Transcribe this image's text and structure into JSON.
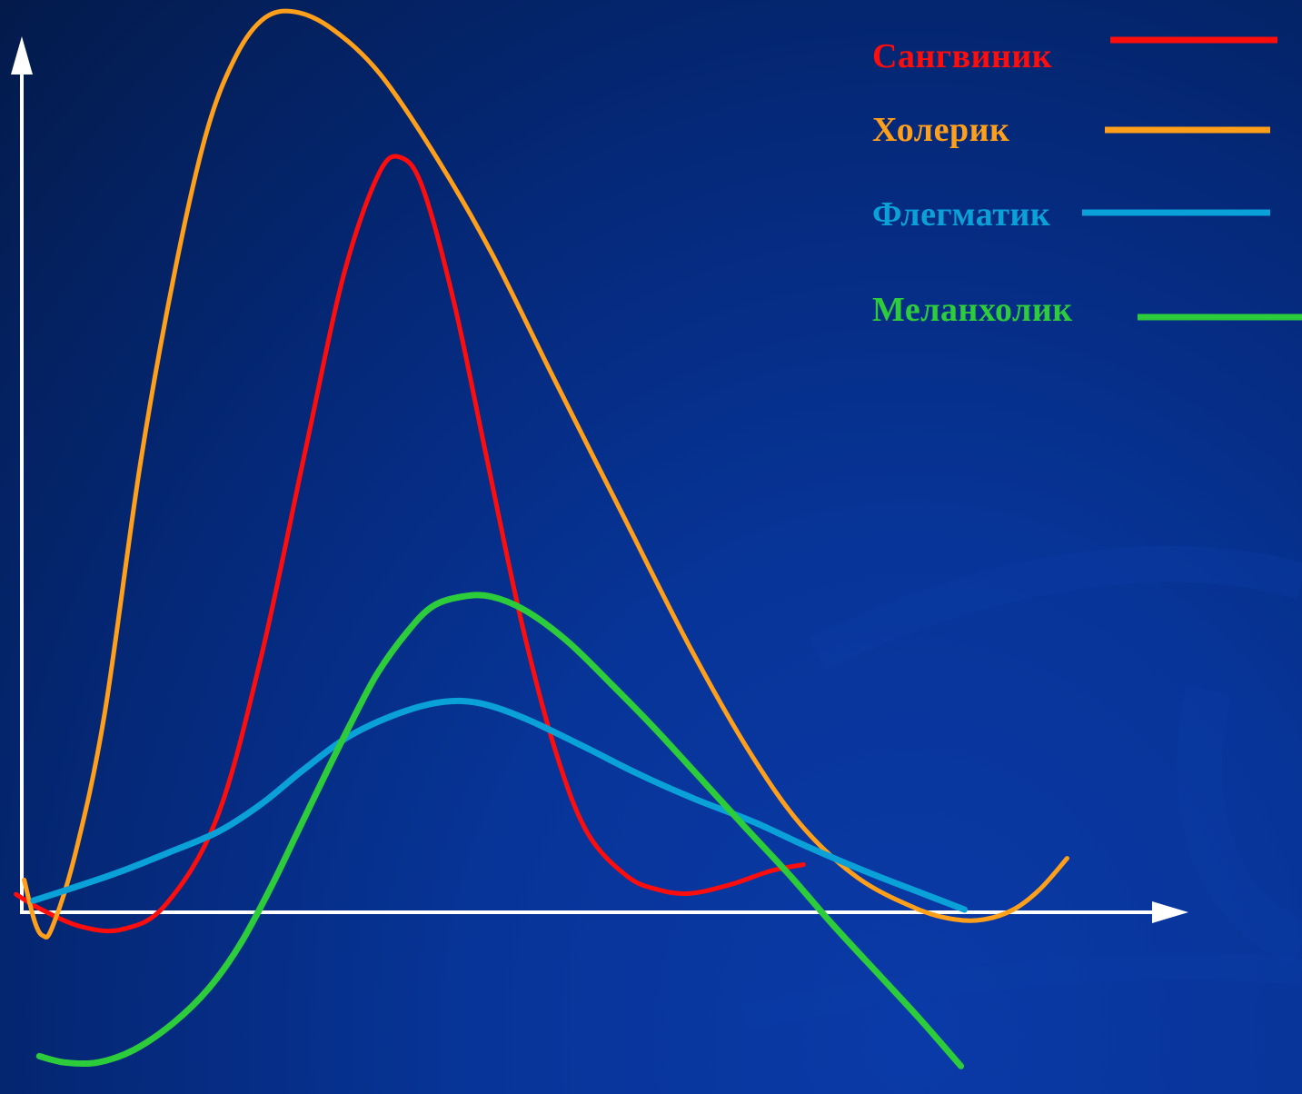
{
  "chart_data": {
    "type": "line",
    "title": "",
    "xlabel": "",
    "ylabel": "",
    "xlim": [
      0,
      100
    ],
    "ylim": [
      -20,
      100
    ],
    "axes": {
      "color": "#ffffff",
      "x_arrow": true,
      "y_arrow": true,
      "tick_labels": false,
      "grid": false
    },
    "legend": {
      "position": "top-right",
      "entries": [
        {
          "series": "Сангвиник",
          "color": "#ff0d0d"
        },
        {
          "series": "Холерик",
          "color": "#ff9f1a"
        },
        {
          "series": "Флегматик",
          "color": "#0aa0d8"
        },
        {
          "series": "Меланхолик",
          "color": "#2ccc3a"
        }
      ]
    },
    "series": [
      {
        "name": "Сангвиник",
        "color": "#ff0d0d",
        "points": [
          [
            -0.5,
            2.0
          ],
          [
            1.7,
            0.3
          ],
          [
            5.1,
            -1.6
          ],
          [
            8.6,
            -1.9
          ],
          [
            12.3,
            0.8
          ],
          [
            16.7,
            10.4
          ],
          [
            20.5,
            28.3
          ],
          [
            24.3,
            51.3
          ],
          [
            27.6,
            70.9
          ],
          [
            30.6,
            82.1
          ],
          [
            32.5,
            83.9
          ],
          [
            34.4,
            80.4
          ],
          [
            37.1,
            67.5
          ],
          [
            39.9,
            50.2
          ],
          [
            42.9,
            31.9
          ],
          [
            45.8,
            17.7
          ],
          [
            48.5,
            8.8
          ],
          [
            51.9,
            4.0
          ],
          [
            54.6,
            2.5
          ],
          [
            57.3,
            2.1
          ],
          [
            60.8,
            3.1
          ],
          [
            64.2,
            4.6
          ],
          [
            67.0,
            5.3
          ]
        ]
      },
      {
        "name": "Холерик",
        "color": "#ff9f1a",
        "points": [
          [
            0.2,
            3.6
          ],
          [
            1.1,
            -1.0
          ],
          [
            1.8,
            -2.6
          ],
          [
            2.6,
            -1.7
          ],
          [
            4.6,
            6.6
          ],
          [
            7.1,
            22.1
          ],
          [
            10.2,
            50.2
          ],
          [
            13.2,
            71.8
          ],
          [
            15.9,
            87.0
          ],
          [
            18.4,
            95.3
          ],
          [
            20.8,
            99.4
          ],
          [
            23.4,
            100.1
          ],
          [
            26.6,
            98.2
          ],
          [
            30.7,
            93.2
          ],
          [
            35.6,
            83.8
          ],
          [
            40.3,
            73.2
          ],
          [
            45.7,
            59.1
          ],
          [
            51.5,
            44.2
          ],
          [
            57.3,
            29.4
          ],
          [
            62.3,
            18.0
          ],
          [
            66.8,
            9.7
          ],
          [
            71.7,
            3.8
          ],
          [
            76.7,
            0.4
          ],
          [
            80.0,
            -0.8
          ],
          [
            82.5,
            -0.8
          ],
          [
            85.0,
            0.3
          ],
          [
            87.3,
            2.6
          ],
          [
            89.6,
            6.0
          ]
        ]
      },
      {
        "name": "Флегматик",
        "color": "#0aa0d8",
        "points": [
          [
            1.0,
            1.3
          ],
          [
            4.1,
            2.6
          ],
          [
            8.2,
            4.4
          ],
          [
            12.5,
            6.6
          ],
          [
            16.9,
            9.0
          ],
          [
            20.6,
            12.1
          ],
          [
            24.1,
            15.8
          ],
          [
            28.1,
            19.6
          ],
          [
            32.5,
            22.2
          ],
          [
            36.2,
            23.4
          ],
          [
            39.4,
            23.2
          ],
          [
            43.2,
            21.5
          ],
          [
            47.9,
            18.6
          ],
          [
            52.8,
            15.4
          ],
          [
            57.5,
            12.7
          ],
          [
            62.8,
            10.0
          ],
          [
            67.5,
            7.2
          ],
          [
            72.6,
            4.4
          ],
          [
            77.0,
            2.2
          ],
          [
            80.8,
            0.3
          ]
        ]
      },
      {
        "name": "Меланхолик",
        "color": "#2ccc3a",
        "points": [
          [
            1.5,
            -16.0
          ],
          [
            3.7,
            -16.7
          ],
          [
            6.5,
            -16.7
          ],
          [
            9.6,
            -15.3
          ],
          [
            13.0,
            -12.3
          ],
          [
            16.0,
            -8.5
          ],
          [
            18.7,
            -3.6
          ],
          [
            21.4,
            2.9
          ],
          [
            23.6,
            8.8
          ],
          [
            25.9,
            15.0
          ],
          [
            28.2,
            21.0
          ],
          [
            30.5,
            26.6
          ],
          [
            33.0,
            31.1
          ],
          [
            35.2,
            34.0
          ],
          [
            37.8,
            35.1
          ],
          [
            40.2,
            35.1
          ],
          [
            43.1,
            33.6
          ],
          [
            46.7,
            30.2
          ],
          [
            50.5,
            25.4
          ],
          [
            54.2,
            20.5
          ],
          [
            58.1,
            15.0
          ],
          [
            61.9,
            9.6
          ],
          [
            65.9,
            4.0
          ],
          [
            69.6,
            -1.5
          ],
          [
            73.3,
            -6.7
          ],
          [
            77.0,
            -11.9
          ],
          [
            80.5,
            -17.1
          ]
        ]
      }
    ]
  }
}
